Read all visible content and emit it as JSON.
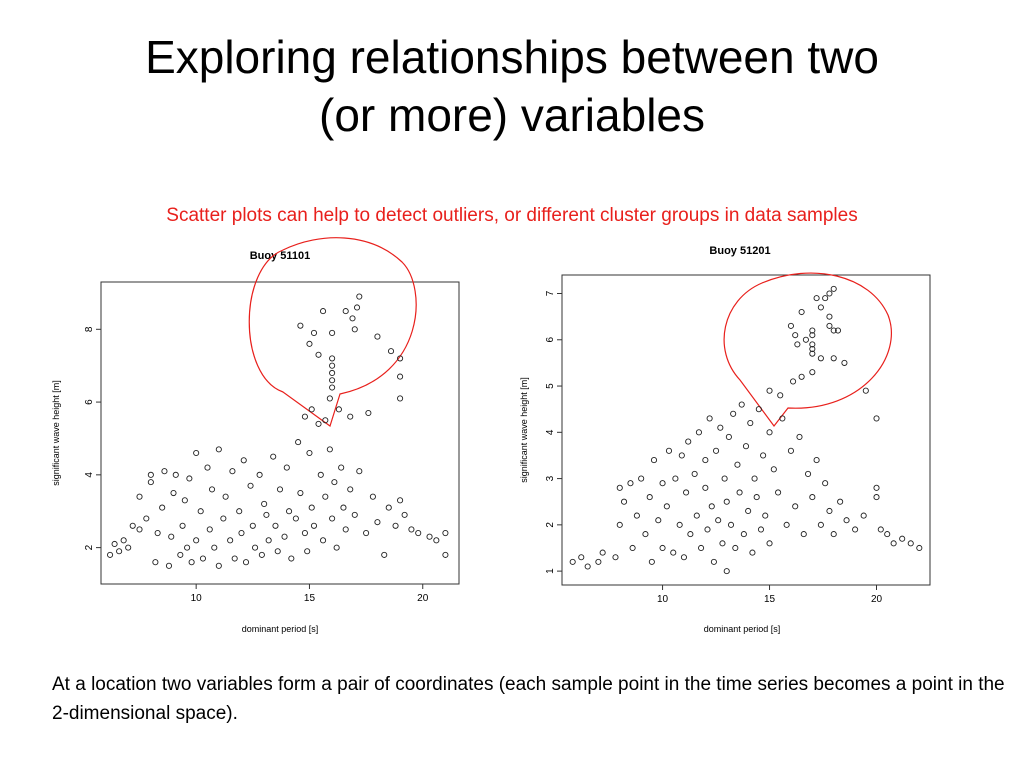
{
  "slide": {
    "title_line1": "Exploring relationships between two",
    "title_line2": "(or more) variables",
    "subtitle": "Scatter plots can help to detect outliers, or different cluster groups in data samples",
    "caption": "At a location two variables form a pair of coordinates (each sample point in the time series becomes a point  in the 2-dimensional space)."
  },
  "colors": {
    "callout_stroke": "#e8201c",
    "subtitle": "#e8201c",
    "points": "#222222"
  },
  "chart_data": [
    {
      "type": "scatter",
      "title": "Buoy 51101",
      "xlabel": "dominant period [s]",
      "ylabel": "significant wave height [m]",
      "xlim": [
        5.8,
        21.6
      ],
      "ylim": [
        1.0,
        9.3
      ],
      "xticks": [
        10,
        15,
        20
      ],
      "yticks": [
        2,
        4,
        6,
        8
      ],
      "grid": false,
      "annotation": "speech-bubble callout highlighting outliers at periods 14.5-19.5 s, heights 5.5-9 m",
      "points": [
        [
          6.2,
          1.8
        ],
        [
          6.4,
          2.1
        ],
        [
          6.6,
          1.9
        ],
        [
          6.8,
          2.2
        ],
        [
          7.0,
          2.0
        ],
        [
          7.2,
          2.6
        ],
        [
          7.5,
          2.5
        ],
        [
          7.5,
          3.4
        ],
        [
          7.8,
          2.8
        ],
        [
          8.0,
          3.8
        ],
        [
          8.0,
          4.0
        ],
        [
          8.2,
          1.6
        ],
        [
          8.3,
          2.4
        ],
        [
          8.5,
          3.1
        ],
        [
          8.6,
          4.1
        ],
        [
          8.8,
          1.5
        ],
        [
          8.9,
          2.3
        ],
        [
          9.0,
          3.5
        ],
        [
          9.1,
          4.0
        ],
        [
          9.3,
          1.8
        ],
        [
          9.4,
          2.6
        ],
        [
          9.5,
          3.3
        ],
        [
          9.6,
          2.0
        ],
        [
          9.7,
          3.9
        ],
        [
          9.8,
          1.6
        ],
        [
          10.0,
          2.2
        ],
        [
          10.0,
          4.6
        ],
        [
          10.2,
          3.0
        ],
        [
          10.3,
          1.7
        ],
        [
          10.5,
          4.2
        ],
        [
          10.6,
          2.5
        ],
        [
          10.7,
          3.6
        ],
        [
          10.8,
          2.0
        ],
        [
          11.0,
          4.7
        ],
        [
          11.0,
          1.5
        ],
        [
          11.2,
          2.8
        ],
        [
          11.3,
          3.4
        ],
        [
          11.5,
          2.2
        ],
        [
          11.6,
          4.1
        ],
        [
          11.7,
          1.7
        ],
        [
          11.9,
          3.0
        ],
        [
          12.0,
          2.4
        ],
        [
          12.1,
          4.4
        ],
        [
          12.2,
          1.6
        ],
        [
          12.4,
          3.7
        ],
        [
          12.5,
          2.6
        ],
        [
          12.6,
          2.0
        ],
        [
          12.8,
          4.0
        ],
        [
          12.9,
          1.8
        ],
        [
          13.0,
          3.2
        ],
        [
          13.1,
          2.9
        ],
        [
          13.2,
          2.2
        ],
        [
          13.4,
          4.5
        ],
        [
          13.5,
          2.6
        ],
        [
          13.6,
          1.9
        ],
        [
          13.7,
          3.6
        ],
        [
          13.9,
          2.3
        ],
        [
          14.0,
          4.2
        ],
        [
          14.1,
          3.0
        ],
        [
          14.2,
          1.7
        ],
        [
          14.4,
          2.8
        ],
        [
          14.5,
          4.9
        ],
        [
          14.6,
          3.5
        ],
        [
          14.8,
          2.4
        ],
        [
          14.9,
          1.9
        ],
        [
          15.0,
          4.6
        ],
        [
          15.1,
          3.1
        ],
        [
          15.2,
          2.6
        ],
        [
          15.4,
          5.4
        ],
        [
          15.5,
          4.0
        ],
        [
          15.6,
          2.2
        ],
        [
          15.7,
          3.4
        ],
        [
          15.9,
          4.7
        ],
        [
          16.0,
          2.8
        ],
        [
          16.1,
          3.8
        ],
        [
          16.2,
          2.0
        ],
        [
          16.4,
          4.2
        ],
        [
          16.5,
          3.1
        ],
        [
          16.6,
          2.5
        ],
        [
          16.8,
          3.6
        ],
        [
          17.0,
          2.9
        ],
        [
          17.2,
          4.1
        ],
        [
          17.5,
          2.4
        ],
        [
          17.8,
          3.4
        ],
        [
          18.0,
          2.7
        ],
        [
          18.3,
          1.8
        ],
        [
          18.5,
          3.1
        ],
        [
          18.8,
          2.6
        ],
        [
          19.0,
          3.3
        ],
        [
          19.2,
          2.9
        ],
        [
          19.5,
          2.5
        ],
        [
          19.8,
          2.4
        ],
        [
          20.3,
          2.3
        ],
        [
          20.6,
          2.2
        ],
        [
          21.0,
          2.4
        ],
        [
          21.0,
          1.8
        ],
        [
          14.8,
          5.6
        ],
        [
          15.1,
          5.8
        ],
        [
          15.7,
          5.5
        ],
        [
          15.9,
          6.1
        ],
        [
          16.0,
          6.4
        ],
        [
          16.0,
          6.6
        ],
        [
          16.0,
          6.8
        ],
        [
          16.0,
          7.0
        ],
        [
          16.0,
          7.2
        ],
        [
          16.3,
          5.8
        ],
        [
          16.8,
          5.6
        ],
        [
          17.6,
          5.7
        ],
        [
          14.6,
          8.1
        ],
        [
          15.0,
          7.6
        ],
        [
          15.2,
          7.9
        ],
        [
          15.6,
          8.5
        ],
        [
          15.4,
          7.3
        ],
        [
          16.0,
          7.9
        ],
        [
          16.6,
          8.5
        ],
        [
          16.9,
          8.3
        ],
        [
          17.1,
          8.6
        ],
        [
          17.2,
          8.9
        ],
        [
          17.0,
          8.0
        ],
        [
          18.0,
          7.8
        ],
        [
          18.6,
          7.4
        ],
        [
          19.0,
          7.2
        ],
        [
          19.0,
          6.7
        ],
        [
          19.0,
          6.1
        ]
      ]
    },
    {
      "type": "scatter",
      "title": "Buoy 51201",
      "xlabel": "dominant period [s]",
      "ylabel": "significant wave height [m]",
      "xlim": [
        5.3,
        22.5
      ],
      "ylim": [
        0.7,
        7.4
      ],
      "xticks": [
        10,
        15,
        20
      ],
      "yticks": [
        1,
        2,
        3,
        4,
        5,
        6,
        7
      ],
      "grid": false,
      "annotation": "speech-bubble callout highlighting outliers at periods 15-19.5 s, heights 4.5-7.1 m",
      "points": [
        [
          5.8,
          1.2
        ],
        [
          6.2,
          1.3
        ],
        [
          6.5,
          1.1
        ],
        [
          7.0,
          1.2
        ],
        [
          7.2,
          1.4
        ],
        [
          7.8,
          1.3
        ],
        [
          8.0,
          2.0
        ],
        [
          8.0,
          2.8
        ],
        [
          8.2,
          2.5
        ],
        [
          8.5,
          2.9
        ],
        [
          8.6,
          1.5
        ],
        [
          8.8,
          2.2
        ],
        [
          9.0,
          3.0
        ],
        [
          9.2,
          1.8
        ],
        [
          9.4,
          2.6
        ],
        [
          9.5,
          1.2
        ],
        [
          9.6,
          3.4
        ],
        [
          9.8,
          2.1
        ],
        [
          10.0,
          1.5
        ],
        [
          10.0,
          2.9
        ],
        [
          10.2,
          2.4
        ],
        [
          10.3,
          3.6
        ],
        [
          10.5,
          1.4
        ],
        [
          10.6,
          3.0
        ],
        [
          10.8,
          2.0
        ],
        [
          10.9,
          3.5
        ],
        [
          11.0,
          1.3
        ],
        [
          11.1,
          2.7
        ],
        [
          11.2,
          3.8
        ],
        [
          11.3,
          1.8
        ],
        [
          11.5,
          3.1
        ],
        [
          11.6,
          2.2
        ],
        [
          11.7,
          4.0
        ],
        [
          11.8,
          1.5
        ],
        [
          12.0,
          2.8
        ],
        [
          12.0,
          3.4
        ],
        [
          12.1,
          1.9
        ],
        [
          12.2,
          4.3
        ],
        [
          12.3,
          2.4
        ],
        [
          12.4,
          1.2
        ],
        [
          12.5,
          3.6
        ],
        [
          12.6,
          2.1
        ],
        [
          12.7,
          4.1
        ],
        [
          12.8,
          1.6
        ],
        [
          12.9,
          3.0
        ],
        [
          13.0,
          2.5
        ],
        [
          13.0,
          1.0
        ],
        [
          13.1,
          3.9
        ],
        [
          13.2,
          2.0
        ],
        [
          13.3,
          4.4
        ],
        [
          13.4,
          1.5
        ],
        [
          13.5,
          3.3
        ],
        [
          13.6,
          2.7
        ],
        [
          13.7,
          4.6
        ],
        [
          13.8,
          1.8
        ],
        [
          13.9,
          3.7
        ],
        [
          14.0,
          2.3
        ],
        [
          14.1,
          4.2
        ],
        [
          14.2,
          1.4
        ],
        [
          14.3,
          3.0
        ],
        [
          14.4,
          2.6
        ],
        [
          14.5,
          4.5
        ],
        [
          14.6,
          1.9
        ],
        [
          14.7,
          3.5
        ],
        [
          14.8,
          2.2
        ],
        [
          15.0,
          4.0
        ],
        [
          15.0,
          1.6
        ],
        [
          15.2,
          3.2
        ],
        [
          15.4,
          2.7
        ],
        [
          15.6,
          4.3
        ],
        [
          15.8,
          2.0
        ],
        [
          16.0,
          3.6
        ],
        [
          16.2,
          2.4
        ],
        [
          16.4,
          3.9
        ],
        [
          16.6,
          1.8
        ],
        [
          16.8,
          3.1
        ],
        [
          17.0,
          2.6
        ],
        [
          17.2,
          3.4
        ],
        [
          17.4,
          2.0
        ],
        [
          17.6,
          2.9
        ],
        [
          17.8,
          2.3
        ],
        [
          18.0,
          1.8
        ],
        [
          18.3,
          2.5
        ],
        [
          18.6,
          2.1
        ],
        [
          19.0,
          1.9
        ],
        [
          19.4,
          2.2
        ],
        [
          20.0,
          2.6
        ],
        [
          20.0,
          2.8
        ],
        [
          20.2,
          1.9
        ],
        [
          20.5,
          1.8
        ],
        [
          20.8,
          1.6
        ],
        [
          21.2,
          1.7
        ],
        [
          21.6,
          1.6
        ],
        [
          22.0,
          1.5
        ],
        [
          15.0,
          4.9
        ],
        [
          15.5,
          4.8
        ],
        [
          16.1,
          5.1
        ],
        [
          16.5,
          5.2
        ],
        [
          17.0,
          5.3
        ],
        [
          17.4,
          5.6
        ],
        [
          18.0,
          5.6
        ],
        [
          18.5,
          5.5
        ],
        [
          19.5,
          4.9
        ],
        [
          20.0,
          4.3
        ],
        [
          16.0,
          6.3
        ],
        [
          16.2,
          6.1
        ],
        [
          16.3,
          5.9
        ],
        [
          16.5,
          6.6
        ],
        [
          16.7,
          6.0
        ],
        [
          17.0,
          5.8
        ],
        [
          17.0,
          6.1
        ],
        [
          17.0,
          6.2
        ],
        [
          17.0,
          5.9
        ],
        [
          17.0,
          5.7
        ],
        [
          17.2,
          6.9
        ],
        [
          17.4,
          6.7
        ],
        [
          17.6,
          6.9
        ],
        [
          17.8,
          7.0
        ],
        [
          18.0,
          7.1
        ],
        [
          17.8,
          6.3
        ],
        [
          18.0,
          6.2
        ],
        [
          18.2,
          6.2
        ],
        [
          17.8,
          6.5
        ]
      ]
    }
  ]
}
